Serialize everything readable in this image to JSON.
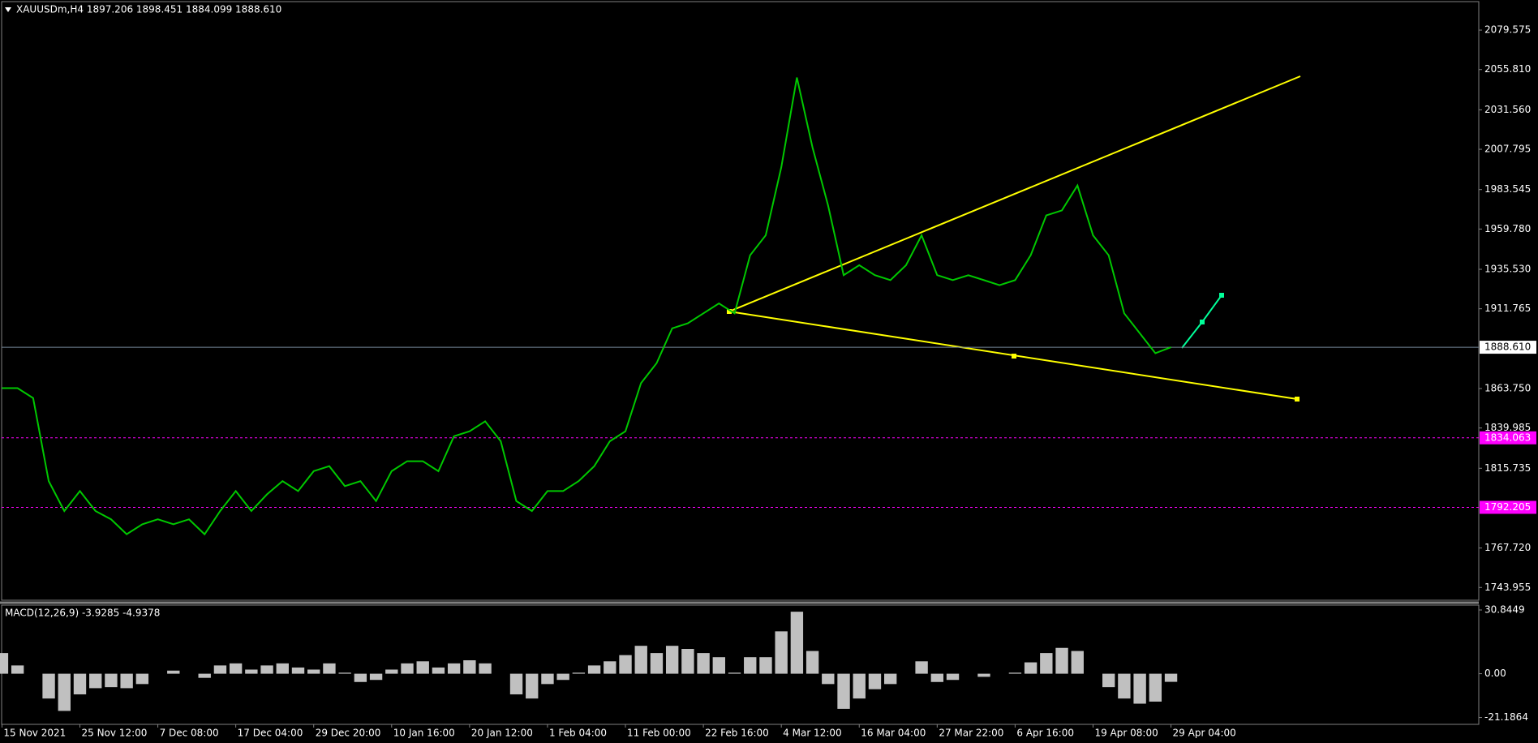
{
  "chart_data": [
    {
      "type": "line",
      "title": "XAUUSDm,H4  1897.206 1898.451 1884.099 1888.610",
      "color": "#00c800",
      "categories": [
        "15 Nov 2021",
        null,
        null,
        null,
        null,
        "25 Nov 12:00",
        null,
        null,
        null,
        null,
        "7 Dec 08:00",
        null,
        null,
        null,
        null,
        "17 Dec 04:00",
        null,
        null,
        null,
        null,
        "29 Dec 20:00",
        null,
        null,
        null,
        null,
        "10 Jan 16:00",
        null,
        null,
        null,
        null,
        "20 Jan 12:00",
        null,
        null,
        null,
        null,
        "1 Feb 04:00",
        null,
        null,
        null,
        null,
        "11 Feb 00:00",
        null,
        null,
        null,
        null,
        "22 Feb 16:00",
        null,
        null,
        null,
        null,
        "4 Mar 12:00",
        null,
        null,
        null,
        null,
        "16 Mar 04:00",
        null,
        null,
        null,
        null,
        "27 Mar 22:00",
        null,
        null,
        null,
        null,
        "6 Apr 16:00",
        null,
        null,
        null,
        null,
        "19 Apr 08:00",
        null,
        null,
        null,
        null,
        "29 Apr 04:00"
      ],
      "values": [
        1864,
        1864,
        1858,
        1808,
        1790,
        1802,
        1790,
        1785,
        1776,
        1782,
        1785,
        1782,
        1785,
        1776,
        1790,
        1802,
        1790,
        1800,
        1808,
        1802,
        1814,
        1817,
        1805,
        1808,
        1796,
        1814,
        1820,
        1820,
        1814,
        1835,
        1838,
        1844,
        1832,
        1796,
        1790,
        1802,
        1802,
        1808,
        1817,
        1832,
        1838,
        1867,
        1879,
        1900,
        1903,
        1909,
        1915,
        1909,
        1944,
        1956,
        1997,
        2051,
        2009,
        1974,
        1932,
        1938,
        1932,
        1929,
        1938,
        1956,
        1932,
        1929,
        1932,
        1929,
        1926,
        1929,
        1944,
        1968,
        1971,
        1986,
        1956,
        1944,
        1909,
        1897,
        1885,
        1888.61
      ],
      "ylim": [
        1736.27,
        2096.71
      ],
      "yticks": [
        2079.575,
        {
          "value": 2055.81,
          "label": "2055.810"
        },
        {
          "value": 2031.56,
          "label": "2031.560"
        },
        2007.795,
        1983.545,
        {
          "value": 1959.78,
          "label": "1959.780"
        },
        {
          "value": 1935.53,
          "label": "1935.530"
        },
        1911.765,
        {
          "value": 1863.75,
          "label": "1863.750"
        },
        1839.985,
        1815.735,
        {
          "value": 1767.72,
          "label": "1767.720"
        },
        1743.955
      ],
      "levels": [
        1834.063,
        1792.205
      ],
      "current_price": {
        "value": 1888.61,
        "label": "1888.610"
      },
      "grid": false
    },
    {
      "type": "bar",
      "title": "MACD(12,26,9) -3.9285 -4.9378",
      "color": "#c0c0c0",
      "values": [
        10,
        4,
        0,
        -12,
        -18,
        -10,
        -7,
        -6.5,
        -7,
        -5,
        0,
        1.5,
        0,
        -2,
        4,
        5,
        2,
        4,
        5,
        3,
        2,
        5,
        0.5,
        -4,
        -3,
        2,
        5,
        6,
        3,
        5,
        6.5,
        5,
        0,
        -10,
        -12,
        -5,
        -3,
        0.5,
        4,
        6,
        9,
        13.5,
        10,
        13.5,
        12,
        10,
        8,
        0.5,
        8,
        8,
        20.5,
        30,
        11,
        -5,
        -17,
        -12,
        -7.5,
        -5,
        0,
        6,
        -4,
        -3,
        0,
        -1.5,
        0,
        0.5,
        5.5,
        10,
        12.5,
        11,
        0,
        -6.5,
        -12,
        -14.5,
        -13.5,
        -3.93
      ],
      "ylim": [
        -24.5,
        33.2
      ],
      "yticks": [
        30.8449,
        {
          "value": 0,
          "label": "0.00"
        },
        -21.1864
      ],
      "grid": false
    }
  ]
}
